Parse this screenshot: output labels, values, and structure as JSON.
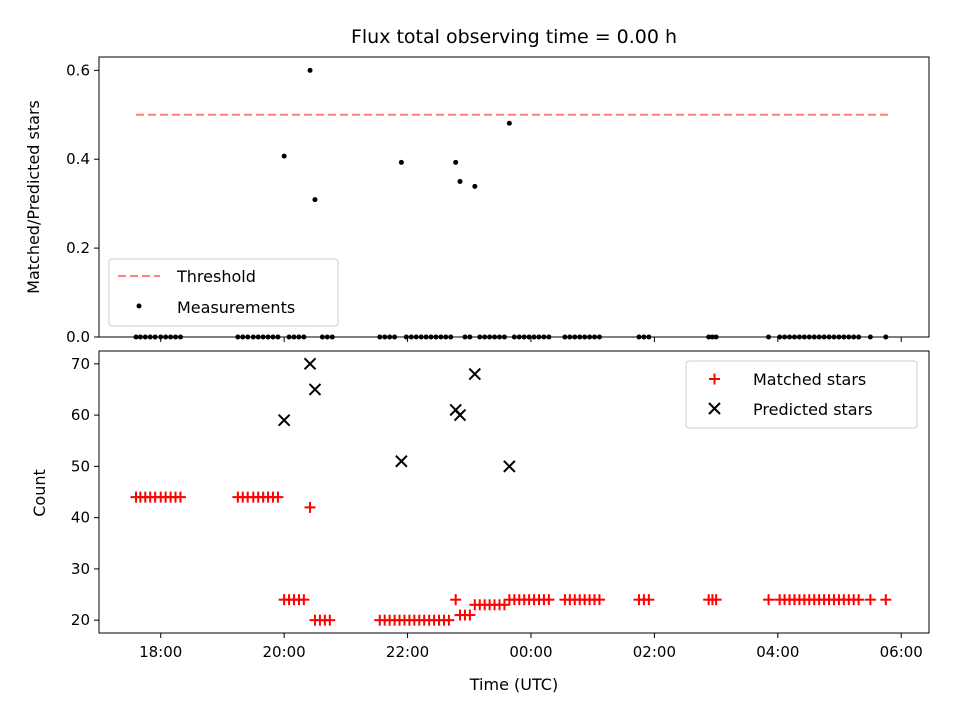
{
  "colors": {
    "threshold": "#ff7f7f",
    "measurements": "#000000",
    "matched": "#ff0000",
    "predicted": "#000000"
  },
  "chart_data": [
    {
      "type": "scatter",
      "title": "Flux total observing time = 0.00 h",
      "xlabel": "",
      "ylabel": "Matched/Predicted stars",
      "x_unit": "hours since 00:00 UTC",
      "xlim": [
        -7.0,
        6.45
      ],
      "ylim": [
        0.0,
        0.63
      ],
      "yticks": [
        0.0,
        0.2,
        0.4,
        0.6
      ],
      "ytick_labels": [
        "0.0",
        "0.2",
        "0.4",
        "0.6"
      ],
      "grid": false,
      "legend_position": "lower-left",
      "series": [
        {
          "name": "Threshold",
          "style": "dashed-line",
          "x": [
            -6.4,
            5.85
          ],
          "y": [
            0.5,
            0.5
          ]
        },
        {
          "name": "Measurements",
          "style": "dot",
          "points": [
            [
              -6.4,
              0.0
            ],
            [
              -6.33,
              0.0
            ],
            [
              -6.25,
              0.0
            ],
            [
              -6.17,
              0.0
            ],
            [
              -6.09,
              0.0
            ],
            [
              -6.0,
              0.0
            ],
            [
              -5.92,
              0.0
            ],
            [
              -5.84,
              0.0
            ],
            [
              -5.76,
              0.0
            ],
            [
              -5.68,
              0.0
            ],
            [
              -4.75,
              0.0
            ],
            [
              -4.67,
              0.0
            ],
            [
              -4.59,
              0.0
            ],
            [
              -4.5,
              0.0
            ],
            [
              -4.42,
              0.0
            ],
            [
              -4.34,
              0.0
            ],
            [
              -4.26,
              0.0
            ],
            [
              -4.18,
              0.0
            ],
            [
              -4.1,
              0.0
            ],
            [
              -4.0,
              0.407
            ],
            [
              -3.92,
              0.0
            ],
            [
              -3.84,
              0.0
            ],
            [
              -3.76,
              0.0
            ],
            [
              -3.68,
              0.0
            ],
            [
              -3.58,
              0.6
            ],
            [
              -3.5,
              0.309
            ],
            [
              -3.38,
              0.0
            ],
            [
              -3.3,
              0.0
            ],
            [
              -3.22,
              0.0
            ],
            [
              -2.45,
              0.0
            ],
            [
              -2.37,
              0.0
            ],
            [
              -2.29,
              0.0
            ],
            [
              -2.21,
              0.0
            ],
            [
              -2.1,
              0.393
            ],
            [
              -2.02,
              0.0
            ],
            [
              -1.94,
              0.0
            ],
            [
              -1.86,
              0.0
            ],
            [
              -1.78,
              0.0
            ],
            [
              -1.7,
              0.0
            ],
            [
              -1.62,
              0.0
            ],
            [
              -1.54,
              0.0
            ],
            [
              -1.46,
              0.0
            ],
            [
              -1.38,
              0.0
            ],
            [
              -1.3,
              0.0
            ],
            [
              -1.22,
              0.393
            ],
            [
              -1.15,
              0.35
            ],
            [
              -1.07,
              0.0
            ],
            [
              -0.99,
              0.0
            ],
            [
              -0.91,
              0.339
            ],
            [
              -0.83,
              0.0
            ],
            [
              -0.75,
              0.0
            ],
            [
              -0.67,
              0.0
            ],
            [
              -0.59,
              0.0
            ],
            [
              -0.51,
              0.0
            ],
            [
              -0.43,
              0.0
            ],
            [
              -0.35,
              0.481
            ],
            [
              -0.27,
              0.0
            ],
            [
              -0.19,
              0.0
            ],
            [
              -0.11,
              0.0
            ],
            [
              -0.03,
              0.0
            ],
            [
              0.05,
              0.0
            ],
            [
              0.13,
              0.0
            ],
            [
              0.21,
              0.0
            ],
            [
              0.29,
              0.0
            ],
            [
              0.55,
              0.0
            ],
            [
              0.63,
              0.0
            ],
            [
              0.71,
              0.0
            ],
            [
              0.79,
              0.0
            ],
            [
              0.87,
              0.0
            ],
            [
              0.95,
              0.0
            ],
            [
              1.03,
              0.0
            ],
            [
              1.11,
              0.0
            ],
            [
              1.75,
              0.0
            ],
            [
              1.83,
              0.0
            ],
            [
              1.91,
              0.0
            ],
            [
              2.88,
              0.0
            ],
            [
              2.94,
              0.0
            ],
            [
              3.0,
              0.0
            ],
            [
              3.85,
              0.0
            ],
            [
              4.03,
              0.0
            ],
            [
              4.11,
              0.0
            ],
            [
              4.19,
              0.0
            ],
            [
              4.27,
              0.0
            ],
            [
              4.35,
              0.0
            ],
            [
              4.43,
              0.0
            ],
            [
              4.51,
              0.0
            ],
            [
              4.59,
              0.0
            ],
            [
              4.67,
              0.0
            ],
            [
              4.75,
              0.0
            ],
            [
              4.83,
              0.0
            ],
            [
              4.91,
              0.0
            ],
            [
              4.99,
              0.0
            ],
            [
              5.07,
              0.0
            ],
            [
              5.15,
              0.0
            ],
            [
              5.23,
              0.0
            ],
            [
              5.31,
              0.0
            ],
            [
              5.5,
              0.0
            ],
            [
              5.75,
              0.0
            ]
          ]
        }
      ]
    },
    {
      "type": "scatter",
      "title": "",
      "xlabel": "Time (UTC)",
      "ylabel": "Count",
      "x_unit": "hours since 00:00 UTC",
      "xlim": [
        -7.0,
        6.45
      ],
      "ylim": [
        17.5,
        72.5
      ],
      "yticks": [
        20,
        30,
        40,
        50,
        60,
        70
      ],
      "ytick_labels": [
        "20",
        "30",
        "40",
        "50",
        "60",
        "70"
      ],
      "xticks": [
        -6,
        -4,
        -2,
        0,
        2,
        4,
        6
      ],
      "xtick_labels": [
        "18:00",
        "20:00",
        "22:00",
        "00:00",
        "02:00",
        "04:00",
        "06:00"
      ],
      "grid": false,
      "legend_position": "upper-right",
      "series": [
        {
          "name": "Matched stars",
          "style": "plus",
          "points": [
            [
              -6.4,
              44
            ],
            [
              -6.33,
              44
            ],
            [
              -6.25,
              44
            ],
            [
              -6.17,
              44
            ],
            [
              -6.09,
              44
            ],
            [
              -6.0,
              44
            ],
            [
              -5.92,
              44
            ],
            [
              -5.84,
              44
            ],
            [
              -5.76,
              44
            ],
            [
              -5.68,
              44
            ],
            [
              -4.75,
              44
            ],
            [
              -4.67,
              44
            ],
            [
              -4.59,
              44
            ],
            [
              -4.5,
              44
            ],
            [
              -4.42,
              44
            ],
            [
              -4.34,
              44
            ],
            [
              -4.26,
              44
            ],
            [
              -4.18,
              44
            ],
            [
              -4.1,
              44
            ],
            [
              -4.0,
              24
            ],
            [
              -3.92,
              24
            ],
            [
              -3.84,
              24
            ],
            [
              -3.76,
              24
            ],
            [
              -3.68,
              24
            ],
            [
              -3.58,
              42
            ],
            [
              -3.5,
              20
            ],
            [
              -3.42,
              20
            ],
            [
              -3.34,
              20
            ],
            [
              -3.26,
              20
            ],
            [
              -2.45,
              20
            ],
            [
              -2.37,
              20
            ],
            [
              -2.29,
              20
            ],
            [
              -2.21,
              20
            ],
            [
              -2.13,
              20
            ],
            [
              -2.05,
              20
            ],
            [
              -1.97,
              20
            ],
            [
              -1.89,
              20
            ],
            [
              -1.81,
              20
            ],
            [
              -1.73,
              20
            ],
            [
              -1.65,
              20
            ],
            [
              -1.57,
              20
            ],
            [
              -1.49,
              20
            ],
            [
              -1.41,
              20
            ],
            [
              -1.33,
              20
            ],
            [
              -1.22,
              24
            ],
            [
              -1.15,
              21
            ],
            [
              -1.07,
              21
            ],
            [
              -0.99,
              21
            ],
            [
              -0.91,
              23
            ],
            [
              -0.83,
              23
            ],
            [
              -0.75,
              23
            ],
            [
              -0.67,
              23
            ],
            [
              -0.59,
              23
            ],
            [
              -0.51,
              23
            ],
            [
              -0.43,
              23
            ],
            [
              -0.35,
              24
            ],
            [
              -0.27,
              24
            ],
            [
              -0.19,
              24
            ],
            [
              -0.11,
              24
            ],
            [
              -0.03,
              24
            ],
            [
              0.05,
              24
            ],
            [
              0.13,
              24
            ],
            [
              0.21,
              24
            ],
            [
              0.29,
              24
            ],
            [
              0.55,
              24
            ],
            [
              0.63,
              24
            ],
            [
              0.71,
              24
            ],
            [
              0.79,
              24
            ],
            [
              0.87,
              24
            ],
            [
              0.95,
              24
            ],
            [
              1.03,
              24
            ],
            [
              1.11,
              24
            ],
            [
              1.75,
              24
            ],
            [
              1.83,
              24
            ],
            [
              1.91,
              24
            ],
            [
              2.88,
              24
            ],
            [
              2.94,
              24
            ],
            [
              3.0,
              24
            ],
            [
              3.85,
              24
            ],
            [
              4.03,
              24
            ],
            [
              4.11,
              24
            ],
            [
              4.19,
              24
            ],
            [
              4.27,
              24
            ],
            [
              4.35,
              24
            ],
            [
              4.43,
              24
            ],
            [
              4.51,
              24
            ],
            [
              4.59,
              24
            ],
            [
              4.67,
              24
            ],
            [
              4.75,
              24
            ],
            [
              4.83,
              24
            ],
            [
              4.91,
              24
            ],
            [
              4.99,
              24
            ],
            [
              5.07,
              24
            ],
            [
              5.15,
              24
            ],
            [
              5.23,
              24
            ],
            [
              5.31,
              24
            ],
            [
              5.5,
              24
            ],
            [
              5.75,
              24
            ]
          ]
        },
        {
          "name": "Predicted stars",
          "style": "x",
          "points": [
            [
              -4.0,
              59
            ],
            [
              -3.58,
              70
            ],
            [
              -3.5,
              65
            ],
            [
              -2.1,
              51
            ],
            [
              -1.22,
              61
            ],
            [
              -1.15,
              60
            ],
            [
              -0.91,
              68
            ],
            [
              -0.35,
              50
            ]
          ]
        }
      ]
    }
  ]
}
